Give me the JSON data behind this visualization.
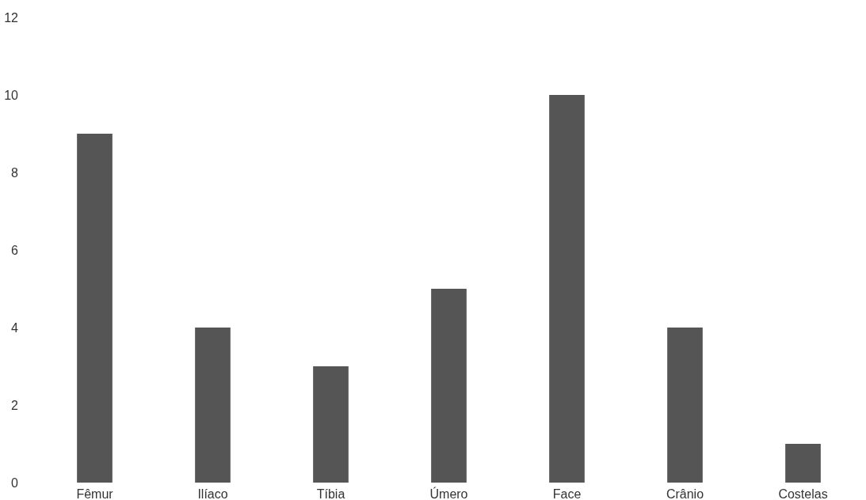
{
  "chart_data": {
    "type": "bar",
    "categories": [
      "Fêmur",
      "Ilíaco",
      "Tíbia",
      "Úmero",
      "Face",
      "Crânio",
      "Costelas"
    ],
    "values": [
      9,
      4,
      3,
      5,
      10,
      4,
      1
    ],
    "color": "#555555",
    "ylim": [
      0,
      12
    ],
    "yticks": [
      0,
      2,
      4,
      6,
      8,
      10,
      12
    ]
  }
}
